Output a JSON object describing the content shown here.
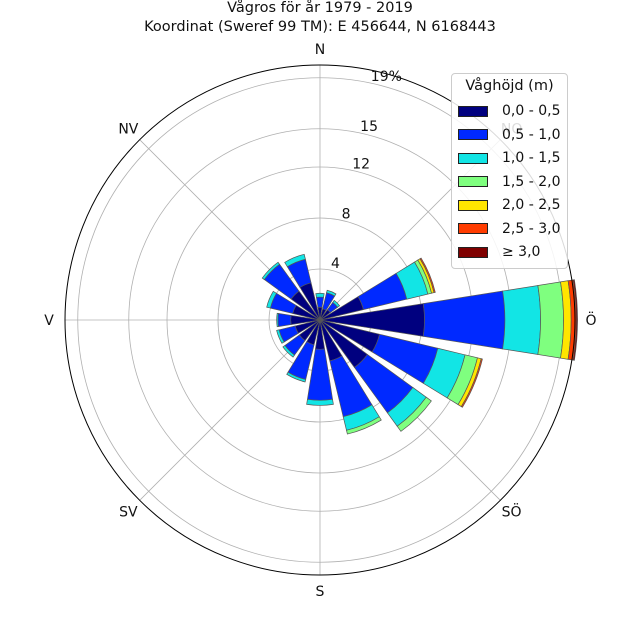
{
  "title_line1": "Vågros för år 1979 - 2019",
  "title_line2": "Koordinat (Sweref 99 TM): E 456644, N 6168443",
  "chart_data": {
    "type": "windrose",
    "directions": [
      "N",
      "NO",
      "Ö",
      "SÖ",
      "S",
      "SV",
      "V",
      "NV"
    ],
    "direction_bins": 16,
    "radial_ticks": [
      "4",
      "8",
      "12",
      "15",
      "19%"
    ],
    "radial_tick_values": [
      4,
      8,
      12,
      15,
      19
    ],
    "rmax": 20,
    "grid": true,
    "legend": {
      "title": "Våghöjd (m)",
      "placement": "top-right",
      "bins": [
        "0,0 - 0,5",
        "0,5 - 1,0",
        "1,0 - 1,5",
        "1,5 - 2,0",
        "2,0 - 2,5",
        "2,5 - 3,0",
        "≥ 3,0"
      ],
      "colors": [
        "#00007f",
        "#0029ff",
        "#12e5e5",
        "#7fff7f",
        "#ffe500",
        "#ff3c00",
        "#7f0000"
      ]
    },
    "sectors": [
      {
        "direction": "N",
        "cumulative": [
          1.0,
          1.8,
          2.1,
          2.1,
          2.1,
          2.1,
          2.1
        ]
      },
      {
        "direction": "NNÖ",
        "cumulative": [
          0.9,
          2.2,
          2.4,
          2.4,
          2.4,
          2.4,
          2.4
        ]
      },
      {
        "direction": "NÖ",
        "cumulative": [
          1.0,
          1.7,
          1.9,
          1.9,
          1.9,
          1.9,
          1.9
        ]
      },
      {
        "direction": "ÖNÖ",
        "cumulative": [
          3.5,
          7.0,
          8.7,
          9.0,
          9.2,
          9.3,
          9.3
        ]
      },
      {
        "direction": "Ö",
        "cumulative": [
          8.2,
          14.5,
          17.3,
          19.1,
          19.7,
          20.1,
          20.2
        ]
      },
      {
        "direction": "ÖSÖ",
        "cumulative": [
          4.8,
          9.5,
          11.7,
          12.7,
          13.0,
          13.1,
          13.1
        ]
      },
      {
        "direction": "SÖ",
        "cumulative": [
          4.6,
          9.0,
          10.3,
          10.8,
          10.8,
          10.8,
          10.8
        ]
      },
      {
        "direction": "SSÖ",
        "cumulative": [
          3.3,
          7.8,
          8.9,
          9.2,
          9.2,
          9.2,
          9.2
        ]
      },
      {
        "direction": "S",
        "cumulative": [
          2.3,
          6.3,
          6.7,
          6.7,
          6.7,
          6.7,
          6.7
        ]
      },
      {
        "direction": "SSV",
        "cumulative": [
          2.0,
          4.8,
          5.0,
          5.0,
          5.0,
          5.0,
          5.0
        ]
      },
      {
        "direction": "SV",
        "cumulative": [
          2.0,
          3.4,
          3.6,
          3.6,
          3.6,
          3.6,
          3.6
        ]
      },
      {
        "direction": "VSV",
        "cumulative": [
          2.0,
          3.3,
          3.5,
          3.5,
          3.5,
          3.5,
          3.5
        ]
      },
      {
        "direction": "V",
        "cumulative": [
          2.3,
          3.3,
          3.4,
          3.4,
          3.4,
          3.4,
          3.4
        ]
      },
      {
        "direction": "VNV",
        "cumulative": [
          2.2,
          4.0,
          4.3,
          4.3,
          4.3,
          4.3,
          4.3
        ]
      },
      {
        "direction": "NV",
        "cumulative": [
          2.8,
          5.4,
          5.6,
          5.6,
          5.6,
          5.6,
          5.6
        ]
      },
      {
        "direction": "NNV",
        "cumulative": [
          3.0,
          4.9,
          5.3,
          5.3,
          5.3,
          5.3,
          5.3
        ]
      }
    ]
  }
}
